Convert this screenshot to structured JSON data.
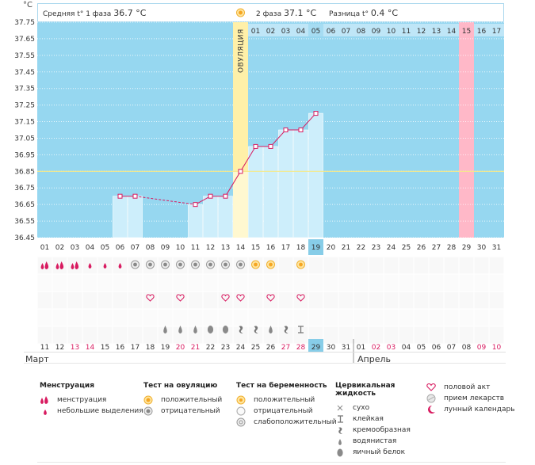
{
  "header": {
    "unit": "°C",
    "phase1_label": "Средняя t° 1 фаза",
    "phase1_value": "36.7 °C",
    "phase2_label": "2 фаза",
    "phase2_value": "37.1 °C",
    "diff_label": "Разница t°",
    "diff_value": "0.4 °C"
  },
  "ovulation_label": "ОВУЛЯЦИЯ",
  "colors": {
    "sky": "#96d7f0",
    "bar": "#cdeefb",
    "line": "#d81b60",
    "ovulation": "#fff0a8",
    "highlight": "#ffb8c8",
    "grid": "#ffffff",
    "coverline": "#f5e98a",
    "cal_blue": "#87cde8"
  },
  "chart_data": {
    "type": "line",
    "title": "",
    "ylabel": "°C",
    "ylim": [
      36.45,
      37.75
    ],
    "y_ticks": [
      "37.75",
      "37.65",
      "37.55",
      "37.45",
      "37.35",
      "37.25",
      "37.15",
      "37.05",
      "36.95",
      "36.85",
      "36.75",
      "36.65",
      "36.55",
      "36.45"
    ],
    "x_cycle_days": [
      "01",
      "02",
      "03",
      "04",
      "05",
      "06",
      "07",
      "08",
      "09",
      "10",
      "11",
      "12",
      "13",
      "14",
      "15",
      "16",
      "17",
      "18",
      "19",
      "20",
      "21",
      "22",
      "23",
      "24",
      "25",
      "26",
      "27",
      "28",
      "29",
      "30",
      "31"
    ],
    "x_phase2_days": [
      "01",
      "02",
      "03",
      "04",
      "05",
      "06",
      "07",
      "08",
      "09",
      "10",
      "11",
      "12",
      "13",
      "14",
      "15",
      "16",
      "17"
    ],
    "highlight_phase2_day": "05",
    "highlight_pink_day": "15",
    "highlight_cycle_day": "19",
    "ovulation_day": "14",
    "coverline": 36.85,
    "series": [
      {
        "values": [
          null,
          null,
          null,
          null,
          null,
          36.7,
          36.7,
          null,
          null,
          null,
          36.65,
          36.7,
          36.7,
          36.85,
          37.0,
          37.0,
          37.1,
          37.1,
          37.2,
          null,
          null,
          null,
          null,
          null,
          null,
          null,
          null,
          null,
          null,
          null,
          null
        ]
      }
    ],
    "dashed_segments": [
      [
        7,
        11
      ]
    ],
    "bar_days": [
      6,
      7,
      11,
      12,
      13,
      14,
      15,
      16,
      17,
      18,
      19
    ]
  },
  "calendar": {
    "dates": [
      "11",
      "12",
      "13",
      "14",
      "15",
      "16",
      "17",
      "18",
      "19",
      "20",
      "21",
      "22",
      "23",
      "24",
      "25",
      "26",
      "27",
      "28",
      "29",
      "30",
      "31",
      "01",
      "02",
      "03",
      "04",
      "05",
      "06",
      "07",
      "08",
      "09",
      "10"
    ],
    "red_dates": [
      2,
      3,
      9,
      10,
      16,
      17,
      22,
      23,
      29,
      30
    ],
    "highlight_index": 18,
    "month_start": "Март",
    "month_end": "Апрель",
    "month_end_index": 21
  },
  "observations": {
    "menstruation": [
      "heavy",
      "heavy",
      "heavy",
      "light",
      "light",
      "light",
      "",
      "",
      "",
      "",
      "",
      "",
      "",
      "",
      "",
      "",
      "",
      "",
      "",
      "",
      "",
      "",
      "",
      "",
      "",
      "",
      "",
      "",
      "",
      "",
      ""
    ],
    "ovulation_test": [
      "",
      "",
      "",
      "",
      "",
      "",
      "negative",
      "negative",
      "negative",
      "negative",
      "negative",
      "negative",
      "negative",
      "negative",
      "positive",
      "positive",
      "",
      "positive",
      "",
      "",
      "",
      "",
      "",
      "",
      "",
      "",
      "",
      "",
      "",
      "",
      ""
    ],
    "intercourse": [
      "",
      "",
      "",
      "",
      "",
      "",
      "",
      "heart",
      "",
      "heart",
      "",
      "",
      "heart",
      "heart",
      "",
      "heart",
      "",
      "heart",
      "",
      "",
      "",
      "",
      "",
      "",
      "",
      "",
      "",
      "",
      "",
      "",
      ""
    ],
    "cervical_fluid": [
      "",
      "",
      "",
      "",
      "",
      "",
      "",
      "",
      "watery",
      "watery",
      "watery",
      "eggwhite",
      "eggwhite",
      "creamy",
      "creamy",
      "watery",
      "creamy",
      "sticky",
      "",
      "",
      "",
      "",
      "",
      "",
      "",
      "",
      "",
      "",
      "",
      "",
      ""
    ]
  },
  "legend": {
    "menstruation": {
      "title": "Менструация",
      "items": [
        "менструация",
        "небольшие выделения"
      ]
    },
    "ovulation_test": {
      "title": "Тест на овуляцию",
      "items": [
        "положительный",
        "отрицательный"
      ]
    },
    "pregnancy_test": {
      "title": "Тест на беременность",
      "items": [
        "положительный",
        "отрицательный",
        "слабоположительный"
      ]
    },
    "cervical_fluid": {
      "title": "Цервикальная жидкость",
      "items": [
        "сухо",
        "клейкая",
        "кремообразная",
        "водянистая",
        "яичный белок"
      ]
    },
    "other": {
      "items": [
        "половой акт",
        "прием лекарств",
        "лунный календарь"
      ]
    }
  }
}
